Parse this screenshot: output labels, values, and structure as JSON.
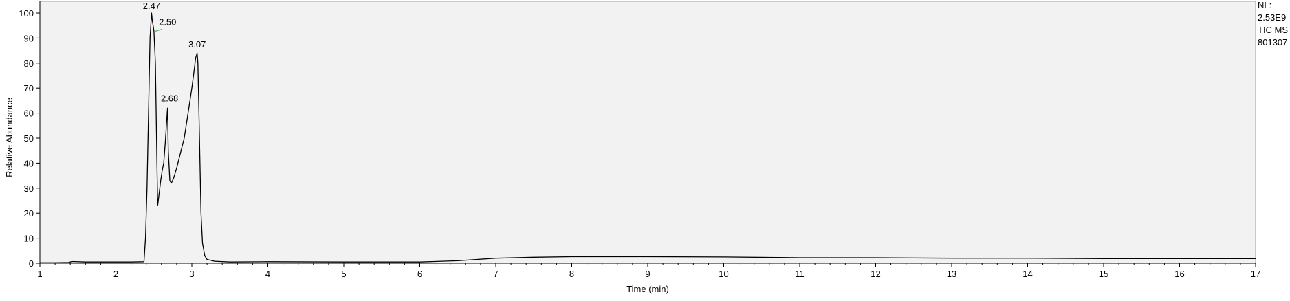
{
  "chart_data": {
    "type": "line",
    "xlabel": "Time (min)",
    "ylabel": "Relative Abundance",
    "xlim": [
      1,
      17
    ],
    "ylim": [
      0,
      100
    ],
    "x_ticks": [
      1,
      2,
      3,
      4,
      5,
      6,
      7,
      8,
      9,
      10,
      11,
      12,
      13,
      14,
      15,
      16,
      17
    ],
    "y_ticks": [
      0,
      10,
      20,
      30,
      40,
      50,
      60,
      70,
      80,
      90,
      100
    ],
    "grid": false,
    "info_lines": [
      "NL:",
      "2.53E9",
      "TIC  MS",
      "801307"
    ],
    "peak_labels": [
      {
        "text": "2.47",
        "x": 2.47,
        "y": 100
      },
      {
        "text": "2.50",
        "x": 2.5,
        "y": 93
      },
      {
        "text": "2.68",
        "x": 2.68,
        "y": 62
      },
      {
        "text": "3.07",
        "x": 3.07,
        "y": 84
      }
    ],
    "series": [
      {
        "x": [
          1.0,
          1.2,
          1.38,
          1.42,
          1.6,
          2.0,
          2.2,
          2.37,
          2.39,
          2.41,
          2.43,
          2.45,
          2.47,
          2.48,
          2.5,
          2.52,
          2.54,
          2.55,
          2.57,
          2.59,
          2.61,
          2.63,
          2.65,
          2.68,
          2.69,
          2.71,
          2.73,
          2.76,
          2.8,
          2.85,
          2.9,
          2.95,
          3.0,
          3.03,
          3.05,
          3.07,
          3.08,
          3.1,
          3.12,
          3.14,
          3.17,
          3.2,
          3.3,
          3.5,
          4.0,
          5.0,
          6.0,
          6.5,
          7.0,
          7.5,
          8.0,
          9.0,
          10.0,
          11.0,
          12.0,
          13.0,
          14.0,
          15.0,
          16.0,
          17.0
        ],
        "y": [
          0.2,
          0.2,
          0.3,
          0.7,
          0.5,
          0.5,
          0.5,
          0.6,
          10,
          30,
          60,
          90,
          100,
          97,
          93,
          80,
          40,
          23,
          28,
          33,
          37,
          40,
          48,
          62,
          45,
          33,
          32,
          34,
          38,
          44,
          50,
          60,
          70,
          77,
          82,
          84,
          80,
          50,
          20,
          8,
          3,
          1.5,
          0.8,
          0.5,
          0.6,
          0.5,
          0.5,
          1.0,
          2.0,
          2.4,
          2.6,
          2.6,
          2.5,
          2.2,
          2.2,
          2.0,
          2.0,
          1.8,
          1.8,
          1.8
        ]
      }
    ]
  }
}
